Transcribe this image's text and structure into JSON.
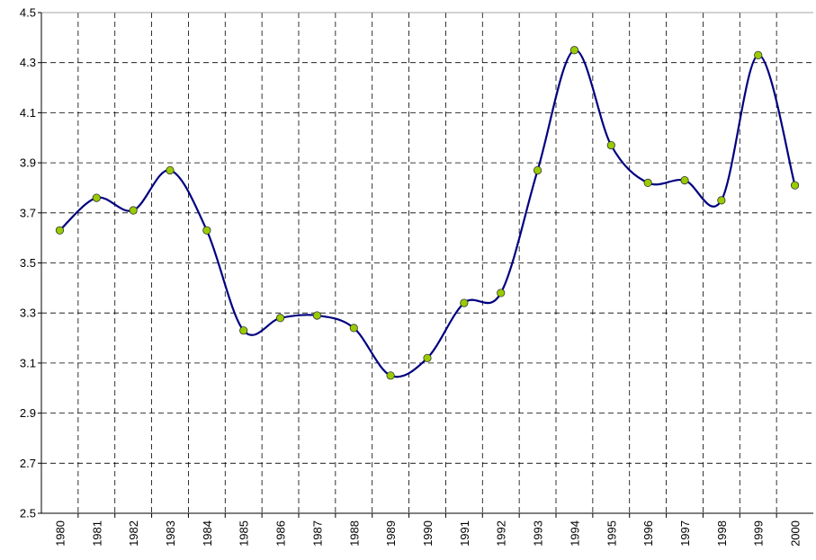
{
  "chart_data": {
    "type": "line",
    "categories": [
      "1980",
      "1981",
      "1982",
      "1983",
      "1984",
      "1985",
      "1986",
      "1987",
      "1988",
      "1989",
      "1990",
      "1991",
      "1992",
      "1993",
      "1994",
      "1995",
      "1996",
      "1997",
      "1998",
      "1999",
      "2000"
    ],
    "values": [
      3.63,
      3.76,
      3.71,
      3.87,
      3.63,
      3.23,
      3.28,
      3.29,
      3.24,
      3.05,
      3.12,
      3.34,
      3.38,
      3.87,
      4.35,
      3.97,
      3.82,
      3.83,
      3.75,
      4.33,
      3.81
    ],
    "color": "#000080",
    "marker_color": "#99cc00",
    "smooth": true,
    "ylim": [
      2.5,
      4.5
    ],
    "yticks": [
      2.5,
      2.7,
      2.9,
      3.1,
      3.3,
      3.5,
      3.7,
      3.9,
      4.1,
      4.3,
      4.5
    ],
    "grid": true
  }
}
